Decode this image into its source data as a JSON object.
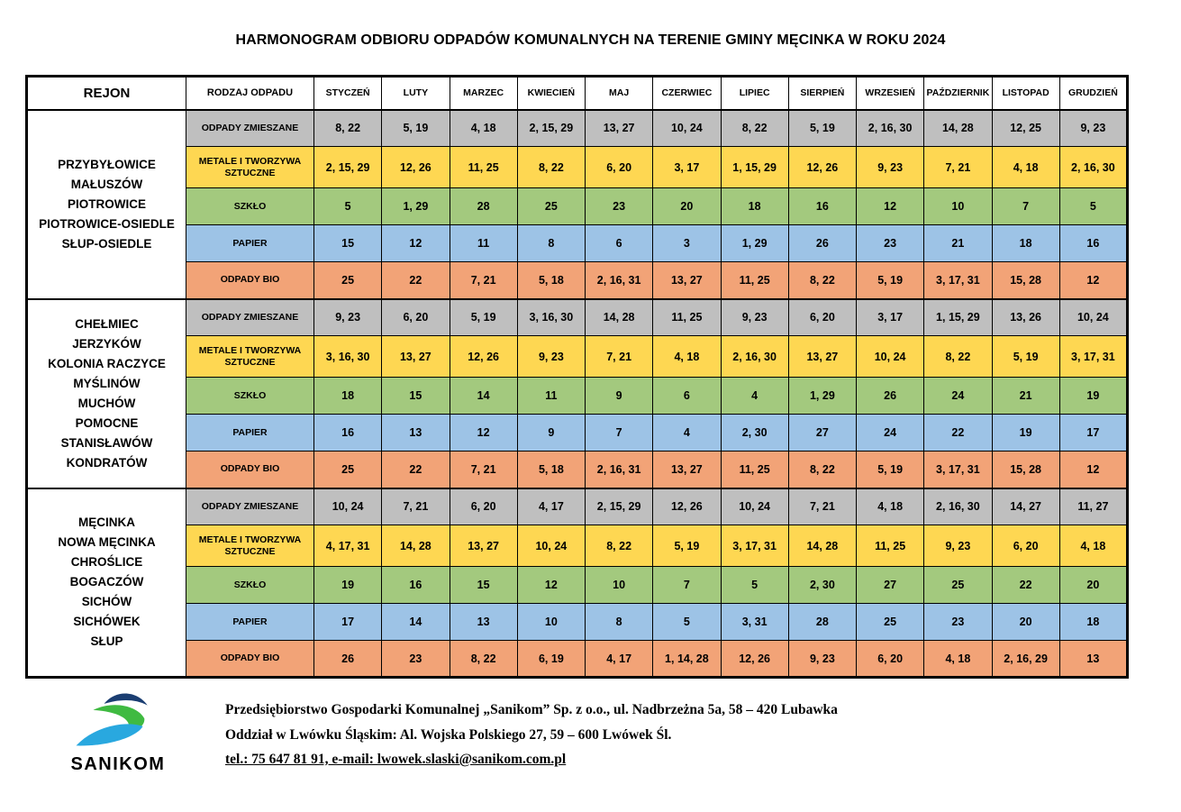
{
  "title": "HARMONOGRAM ODBIORU ODPADÓW KOMUNALNYCH NA TERENIE GMINY MĘCINKA W ROKU 2024",
  "table": {
    "region_header": "REJON",
    "waste_header": "RODZAJ ODPADU",
    "months": [
      "STYCZEŃ",
      "LUTY",
      "MARZEC",
      "KWIECIEŃ",
      "MAJ",
      "CZERWIEC",
      "LIPIEC",
      "SIERPIEŃ",
      "WRZESIEŃ",
      "PAŹDZIERNIK",
      "LISTOPAD",
      "GRUDZIEŃ"
    ],
    "regions": [
      {
        "villages": [
          "PRZYBYŁOWICE",
          "MAŁUSZÓW",
          "PIOTROWICE",
          "PIOTROWICE-OSIEDLE",
          "SŁUP-OSIEDLE"
        ],
        "rows": [
          {
            "type": "ODPADY ZMIESZANE",
            "color": "#BFBFBF",
            "dates": [
              "8, 22",
              "5, 19",
              "4, 18",
              "2, 15, 29",
              "13, 27",
              "10, 24",
              "8, 22",
              "5, 19",
              "2, 16, 30",
              "14, 28",
              "12, 25",
              "9, 23"
            ]
          },
          {
            "type": "METALE I TWORZYWA SZTUCZNE",
            "color": "#FED752",
            "dates": [
              "2, 15, 29",
              "12, 26",
              "11, 25",
              "8, 22",
              "6, 20",
              "3, 17",
              "1, 15, 29",
              "12, 26",
              "9, 23",
              "7, 21",
              "4, 18",
              "2, 16, 30"
            ]
          },
          {
            "type": "SZKŁO",
            "color": "#A3C97E",
            "dates": [
              "5",
              "1, 29",
              "28",
              "25",
              "23",
              "20",
              "18",
              "16",
              "12",
              "10",
              "7",
              "5"
            ]
          },
          {
            "type": "PAPIER",
            "color": "#9DC3E6",
            "dates": [
              "15",
              "12",
              "11",
              "8",
              "6",
              "3",
              "1, 29",
              "26",
              "23",
              "21",
              "18",
              "16"
            ]
          },
          {
            "type": "ODPADY BIO",
            "color": "#F2A377",
            "dates": [
              "25",
              "22",
              "7, 21",
              "5, 18",
              "2, 16, 31",
              "13, 27",
              "11, 25",
              "8, 22",
              "5, 19",
              "3, 17, 31",
              "15, 28",
              "12"
            ]
          }
        ]
      },
      {
        "villages": [
          "CHEŁMIEC",
          "JERZYKÓW",
          "KOLONIA RACZYCE",
          "MYŚLINÓW",
          "MUCHÓW",
          "POMOCNE",
          "STANISŁAWÓW",
          "KONDRATÓW"
        ],
        "rows": [
          {
            "type": "ODPADY ZMIESZANE",
            "color": "#BFBFBF",
            "dates": [
              "9, 23",
              "6, 20",
              "5, 19",
              "3, 16, 30",
              "14, 28",
              "11, 25",
              "9, 23",
              "6, 20",
              "3, 17",
              "1, 15, 29",
              "13, 26",
              "10, 24"
            ]
          },
          {
            "type": "METALE I TWORZYWA SZTUCZNE",
            "color": "#FED752",
            "dates": [
              "3, 16, 30",
              "13, 27",
              "12, 26",
              "9, 23",
              "7, 21",
              "4, 18",
              "2, 16, 30",
              "13, 27",
              "10, 24",
              "8, 22",
              "5, 19",
              "3, 17, 31"
            ]
          },
          {
            "type": "SZKŁO",
            "color": "#A3C97E",
            "dates": [
              "18",
              "15",
              "14",
              "11",
              "9",
              "6",
              "4",
              "1, 29",
              "26",
              "24",
              "21",
              "19"
            ]
          },
          {
            "type": "PAPIER",
            "color": "#9DC3E6",
            "dates": [
              "16",
              "13",
              "12",
              "9",
              "7",
              "4",
              "2, 30",
              "27",
              "24",
              "22",
              "19",
              "17"
            ]
          },
          {
            "type": "ODPADY BIO",
            "color": "#F2A377",
            "dates": [
              "25",
              "22",
              "7, 21",
              "5, 18",
              "2, 16, 31",
              "13, 27",
              "11, 25",
              "8, 22",
              "5, 19",
              "3, 17, 31",
              "15, 28",
              "12"
            ]
          }
        ]
      },
      {
        "villages": [
          "MĘCINKA",
          "NOWA MĘCINKA",
          "CHROŚLICE",
          "BOGACZÓW",
          "SICHÓW",
          "SICHÓWEK",
          "SŁUP"
        ],
        "rows": [
          {
            "type": "ODPADY ZMIESZANE",
            "color": "#BFBFBF",
            "dates": [
              "10, 24",
              "7, 21",
              "6, 20",
              "4, 17",
              "2, 15, 29",
              "12, 26",
              "10, 24",
              "7, 21",
              "4, 18",
              "2, 16, 30",
              "14, 27",
              "11, 27"
            ]
          },
          {
            "type": "METALE I TWORZYWA SZTUCZNE",
            "color": "#FED752",
            "dates": [
              "4, 17, 31",
              "14, 28",
              "13, 27",
              "10, 24",
              "8, 22",
              "5, 19",
              "3, 17, 31",
              "14, 28",
              "11, 25",
              "9, 23",
              "6, 20",
              "4, 18"
            ]
          },
          {
            "type": "SZKŁO",
            "color": "#A3C97E",
            "dates": [
              "19",
              "16",
              "15",
              "12",
              "10",
              "7",
              "5",
              "2, 30",
              "27",
              "25",
              "22",
              "20"
            ]
          },
          {
            "type": "PAPIER",
            "color": "#9DC3E6",
            "dates": [
              "17",
              "14",
              "13",
              "10",
              "8",
              "5",
              "3, 31",
              "28",
              "25",
              "23",
              "20",
              "18"
            ]
          },
          {
            "type": "ODPADY BIO",
            "color": "#F2A377",
            "dates": [
              "26",
              "23",
              "8, 22",
              "6, 19",
              "4, 17",
              "1, 14, 28",
              "12, 26",
              "9, 23",
              "6, 20",
              "4, 18",
              "2, 16, 29",
              "13"
            ]
          }
        ]
      }
    ]
  },
  "footer": {
    "logo_text": "SANIKOM",
    "logo_colors": {
      "navy": "#1B3E72",
      "green": "#3FBA41",
      "blue": "#29A8DF"
    },
    "lines": [
      "Przedsiębiorstwo Gospodarki Komunalnej „Sanikom” Sp. z o.o., ul. Nadbrzeżna 5a, 58 – 420 Lubawka",
      "Oddział w Lwówku Śląskim: Al. Wojska Polskiego 27, 59 – 600 Lwówek Śl.",
      "tel.: 75 647 81 91, e-mail: lwowek.slaski@sanikom.com.pl"
    ]
  }
}
